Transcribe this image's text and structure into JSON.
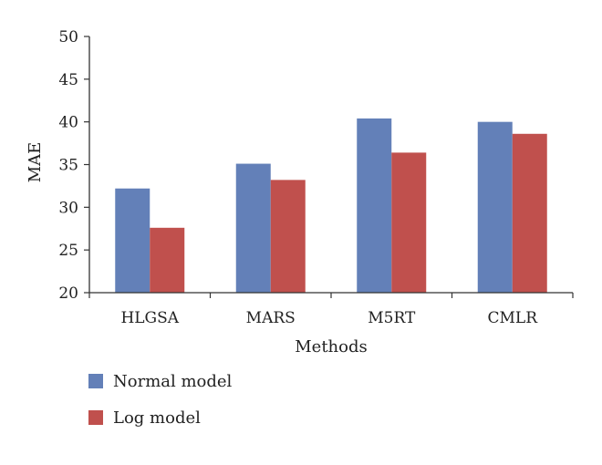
{
  "chart_data": {
    "type": "bar",
    "categories": [
      "HLGSA",
      "MARS",
      "M5RT",
      "CMLR"
    ],
    "series": [
      {
        "name": "Normal model",
        "values": [
          32.2,
          35.1,
          40.4,
          40.0
        ],
        "color": "#6380b8"
      },
      {
        "name": "Log model",
        "values": [
          27.6,
          33.2,
          36.4,
          38.6
        ],
        "color": "#c0504d"
      }
    ],
    "xlabel": "Methods",
    "ylabel": "MAE",
    "ylim": [
      20,
      50
    ],
    "yticks": [
      20,
      25,
      30,
      35,
      40,
      45,
      50
    ],
    "grid": false,
    "legend_position": "bottom-left"
  }
}
